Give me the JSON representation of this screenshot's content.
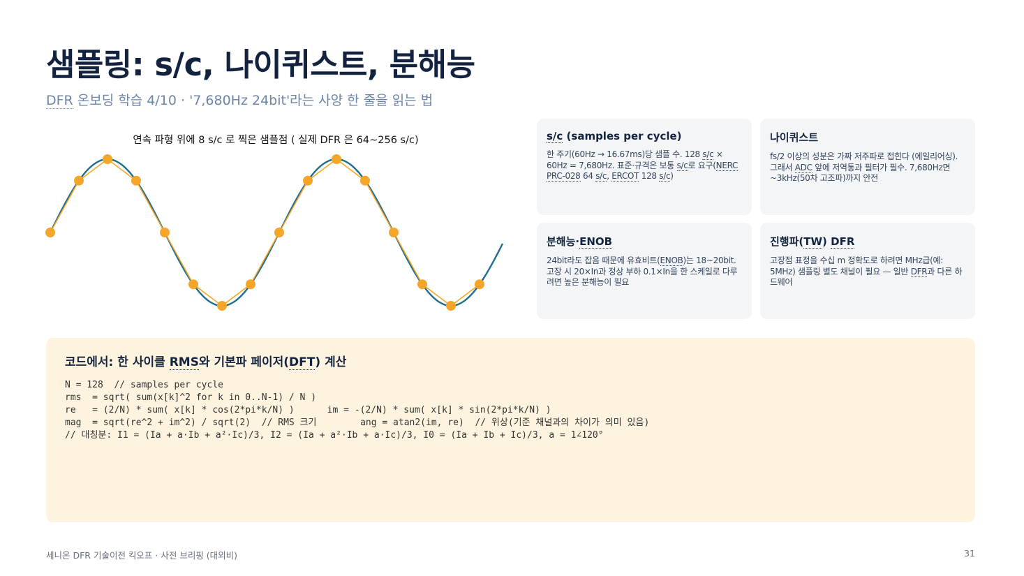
{
  "header": {
    "title": "샘플링: s/c, 나이퀴스트, 분해능",
    "subtitle_abbr": "DFR",
    "subtitle_rest": " 온보딩 학습 4/10 · '7,680Hz 24bit'라는 사양 한 줄을 읽는 법"
  },
  "chart_data": {
    "type": "line",
    "title": "연속 파형 위에  8 s/c 로 찍은 샘플점  ( 실제  DFR 은  64~256 s/c)",
    "samples_per_cycle": 8,
    "cycles_shown": 2.0,
    "series": [
      {
        "values": [
          0.0,
          0.707,
          1.0,
          0.707,
          0.0,
          -0.707,
          -1.0,
          -0.707,
          0.0,
          0.707,
          1.0,
          0.707,
          0.0,
          -0.707,
          -1.0,
          -0.707
        ]
      },
      {
        "values": [
          0.0,
          0.707,
          1.0,
          0.707,
          0.0,
          -0.707,
          -1.0,
          -0.707,
          0.0,
          0.707,
          1.0,
          0.707,
          0.0,
          -0.707,
          -1.0,
          -0.707
        ]
      }
    ],
    "colors": {
      "continuous": "#1f6e8c",
      "samples": "#f4a62a"
    },
    "ylim": [
      -1.05,
      1.05
    ]
  },
  "cards": [
    {
      "title_parts": [
        [
          "s/c",
          true
        ],
        [
          " (samples per cycle)",
          false
        ]
      ],
      "body_parts": [
        [
          "한 주기(60Hz → 16.67ms)당 샘플 수. 128 ",
          false
        ],
        [
          "s/c",
          true
        ],
        [
          " × 60Hz = 7,680Hz. 표준·규격은 보통 ",
          false
        ],
        [
          "s/c",
          true
        ],
        [
          "로 요구(",
          false
        ],
        [
          "NERC PRC-028",
          true
        ],
        [
          " 64 ",
          false
        ],
        [
          "s/c",
          true
        ],
        [
          ", ",
          false
        ],
        [
          "ERCOT",
          true
        ],
        [
          " 128 ",
          false
        ],
        [
          "s/c",
          true
        ],
        [
          ")",
          false
        ]
      ]
    },
    {
      "title_parts": [
        [
          "나이퀴스트",
          false
        ]
      ],
      "body_parts": [
        [
          "fs/2 이상의 성분은 가짜 저주파로 접힌다 (에일리어싱). 그래서 ",
          false
        ],
        [
          "ADC",
          true
        ],
        [
          " 앞에 저역통과 필터가 필수. 7,680Hz면 ~3kHz(50차 고조파)까지 안전",
          false
        ]
      ]
    },
    {
      "title_parts": [
        [
          "분해능·",
          false
        ],
        [
          "ENOB",
          true
        ]
      ],
      "body_parts": [
        [
          "24bit라도 잡음 때문에 유효비트(",
          false
        ],
        [
          "ENOB",
          true
        ],
        [
          ")는 18~20bit. 고장 시 20×In과 정상 부하 0.1×In을 한 스케일로 다루려면 높은 분해능이 필요",
          false
        ]
      ]
    },
    {
      "title_parts": [
        [
          "진행파(",
          false
        ],
        [
          "TW",
          true
        ],
        [
          ") ",
          false
        ],
        [
          "DFR",
          true
        ]
      ],
      "body_parts": [
        [
          "고장점 표정을 수십 m 정확도로 하려면 MHz급(예: 5MHz) 샘플링 별도 채널이 필요 — 일반 ",
          false
        ],
        [
          "DFR",
          true
        ],
        [
          "과 다른 하드웨어",
          false
        ]
      ]
    }
  ],
  "code": {
    "title_parts": [
      [
        "코드에서: 한 사이클 ",
        false
      ],
      [
        "RMS",
        true
      ],
      [
        "와 기본파 페이저(",
        false
      ],
      [
        "DFT",
        true
      ],
      [
        ") 계산",
        false
      ]
    ],
    "lines": [
      "N = 128  // samples per cycle",
      "rms  = sqrt( sum(x[k]^2 for k in 0..N-1) / N )",
      "re   = (2/N) * sum( x[k] * cos(2*pi*k/N) )      im = -(2/N) * sum( x[k] * sin(2*pi*k/N) )",
      "mag  = sqrt(re^2 + im^2) / sqrt(2)  // RMS 크기        ang = atan2(im, re)  // 위상(기준 채널과의 차이가 의미 있음)",
      "// 대칭분: I1 = (Ia + a·Ib + a²·Ic)/3, I2 = (Ia + a²·Ib + a·Ic)/3, I0 = (Ia + Ib + Ic)/3, a = 1∠120°"
    ]
  },
  "footer": {
    "left": "세니온 DFR 기술이전 킥오프 · 사전 브리핑 (대외비)",
    "page": "31"
  }
}
